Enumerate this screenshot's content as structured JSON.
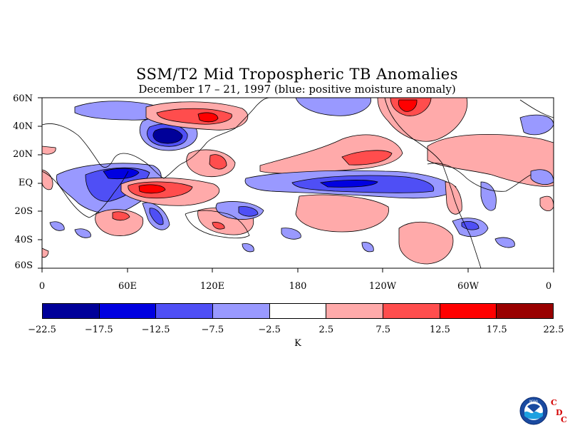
{
  "title": "SSM/T2 Mid Tropospheric TB Anomalies",
  "subtitle": "December 17 – 21, 1997 (blue: positive moisture anomaly)",
  "lat_labels": [
    "60N",
    "40N",
    "20N",
    "EQ",
    "20S",
    "40S",
    "60S"
  ],
  "lon_labels": [
    "0",
    "60E",
    "120E",
    "180",
    "120W",
    "60W",
    "0"
  ],
  "colorbar": {
    "levels": [
      "−22.5",
      "−17.5",
      "−12.5",
      "−7.5",
      "−2.5",
      "2.5",
      "7.5",
      "12.5",
      "17.5",
      "22.5"
    ],
    "colors": [
      "#000099",
      "#0000e0",
      "#4f4ff5",
      "#9999ff",
      "#ffffff",
      "#ffaaaa",
      "#ff4d4d",
      "#ff0000",
      "#990000"
    ],
    "units": "K"
  },
  "logos": {
    "noaa_text": "NOAA",
    "cdc_letters": [
      "C",
      "D",
      "C"
    ]
  },
  "map_colors": {
    "land_outline": "#000000",
    "contour": "#000000"
  }
}
